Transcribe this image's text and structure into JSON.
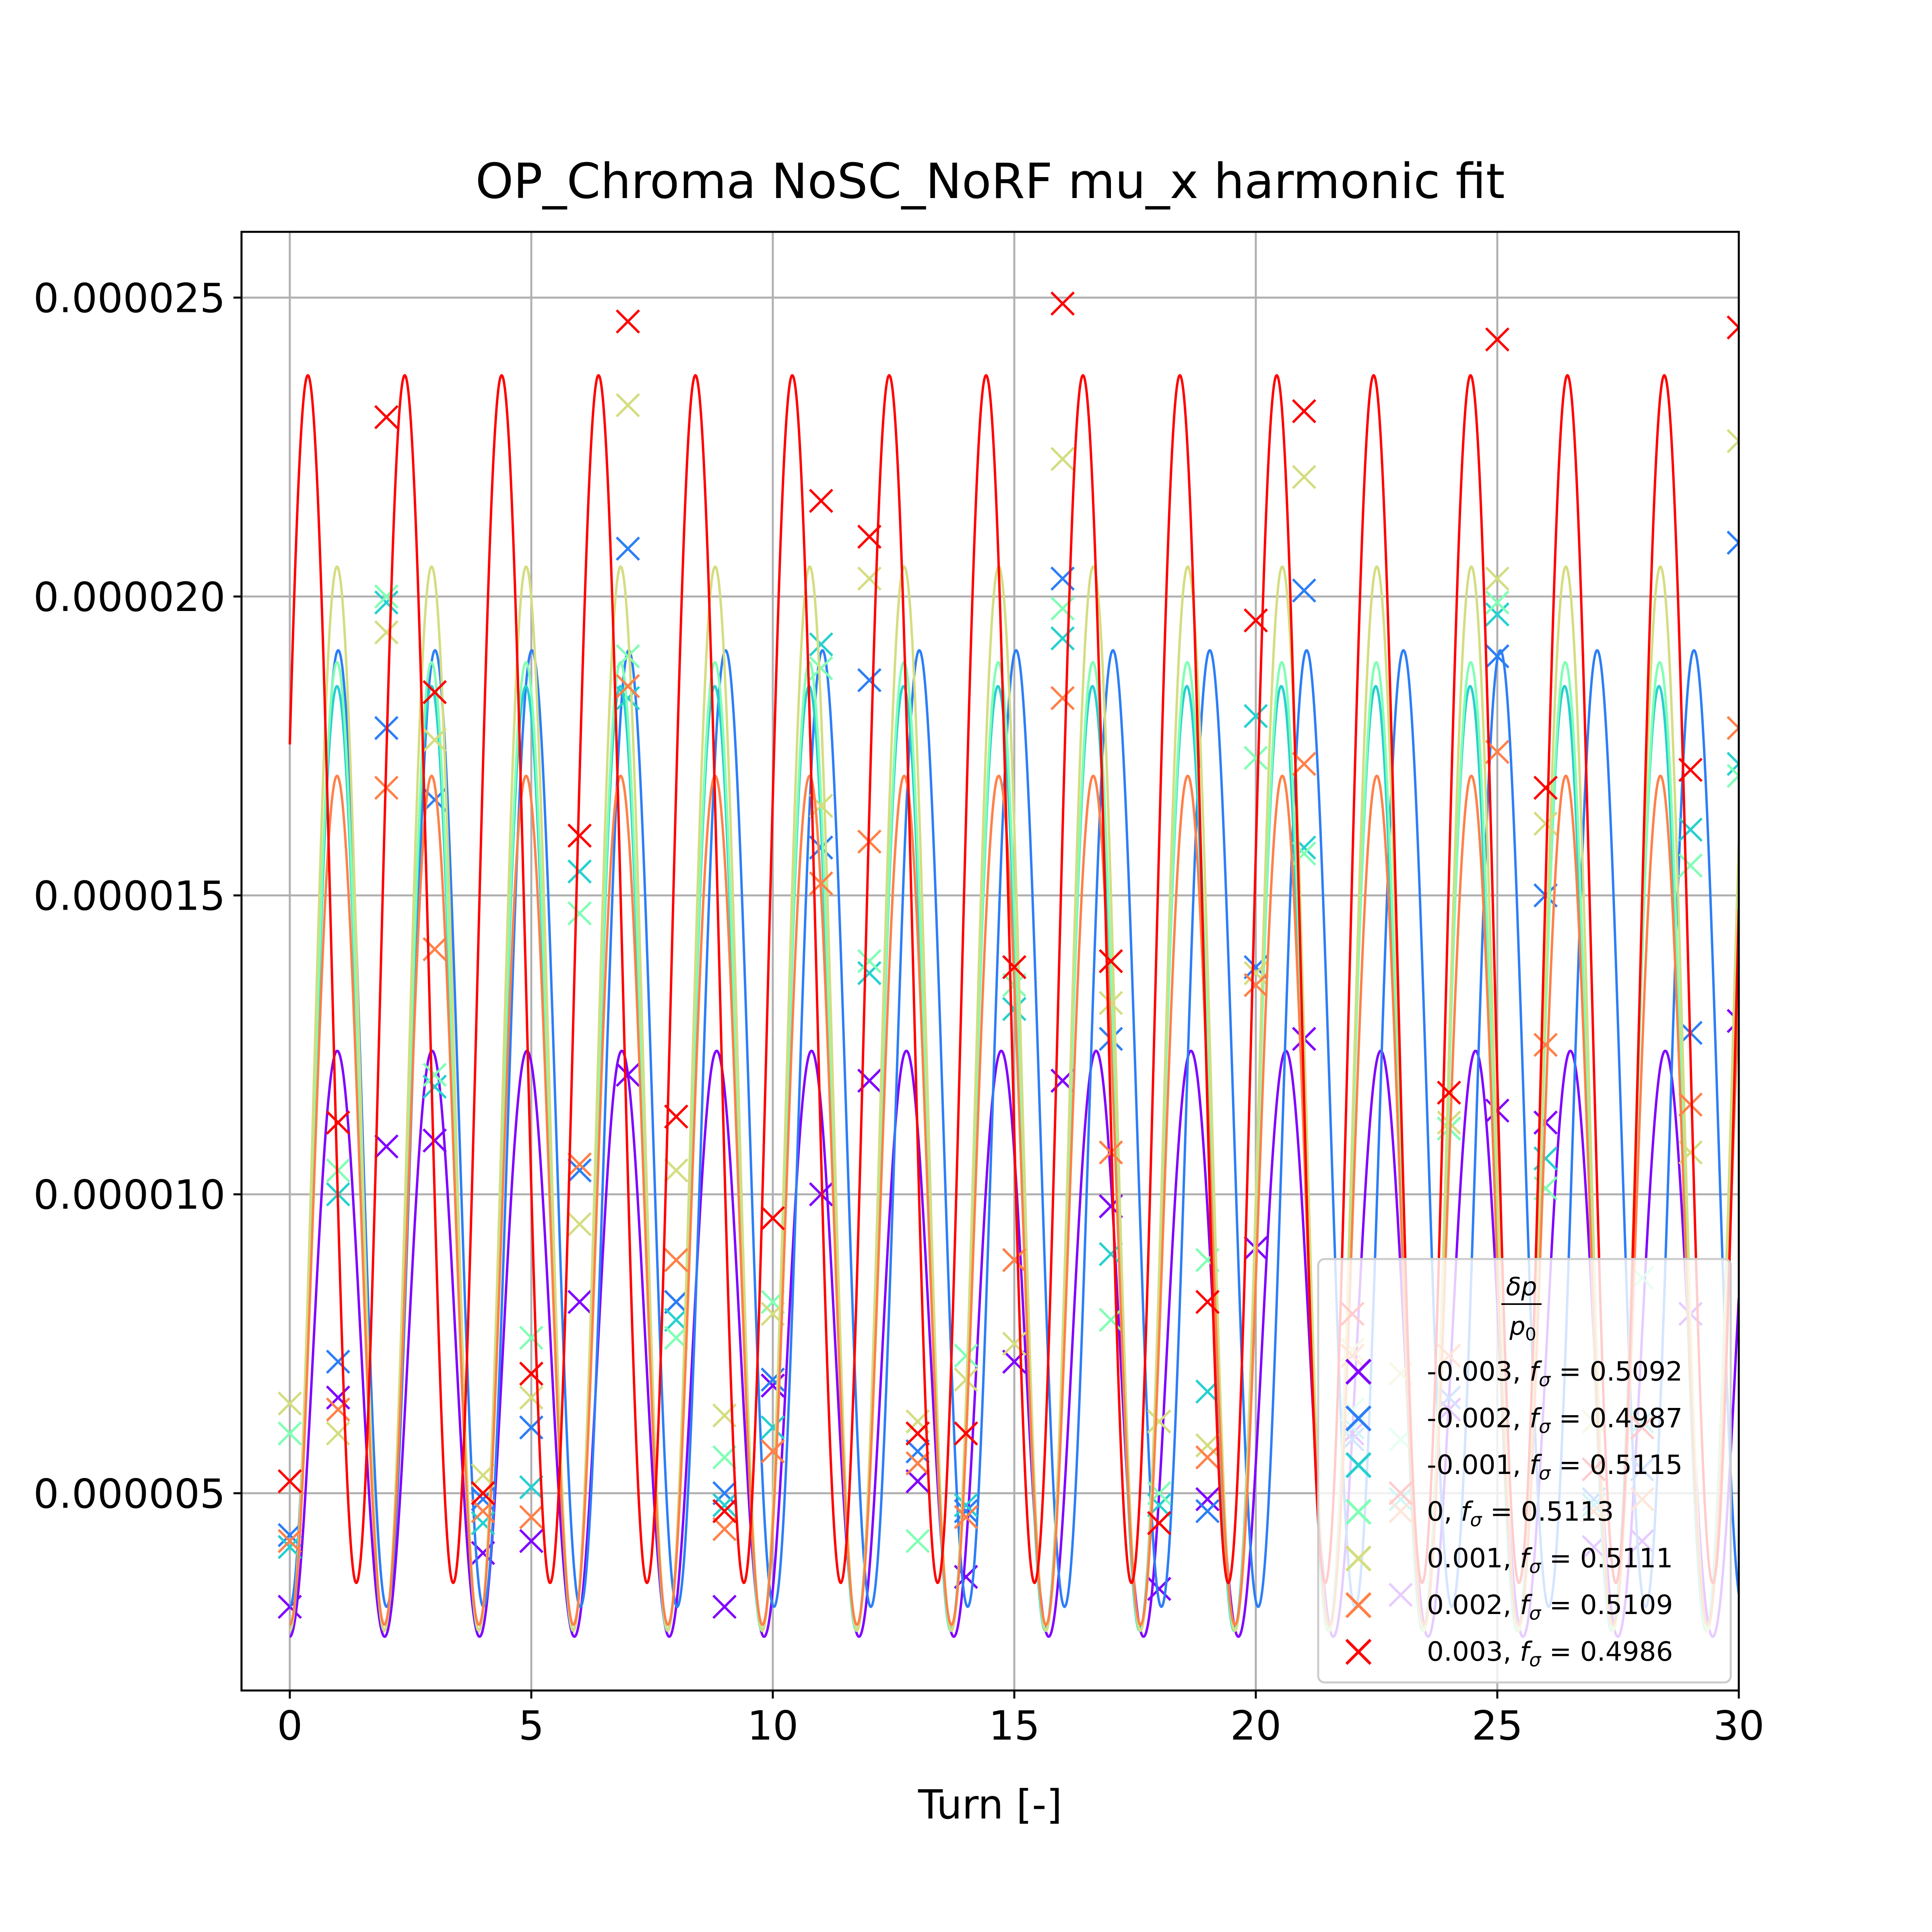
{
  "chart_data": {
    "type": "line",
    "title": "OP_Chroma NoSC_NoRF mu_x harmonic fit",
    "xlabel": "Turn [-]",
    "ylabel": "",
    "xlim": [
      -1,
      30
    ],
    "ylim": [
      1.7e-06,
      2.61e-05
    ],
    "xticks": [
      0,
      5,
      10,
      15,
      20,
      25,
      30
    ],
    "xtick_labels": [
      "0",
      "5",
      "10",
      "15",
      "20",
      "25",
      "30"
    ],
    "yticks": [
      5e-06,
      1e-05,
      1.5e-05,
      2e-05,
      2.5e-05
    ],
    "ytick_labels": [
      "0.000005",
      "0.000010",
      "0.000015",
      "0.000020",
      "0.000025"
    ],
    "grid": true,
    "legend": {
      "placement": "lower right",
      "title_numerator": "δp",
      "title_denominator": "p",
      "title_denominator_subscript": "0"
    },
    "series": [
      {
        "name": "-0.003",
        "f_sigma": "0.5092",
        "color": "#8000ff",
        "fit": {
          "offset": 7.5e-06,
          "amplitude": 4.9e-06,
          "period": 1.964,
          "phase": 0.0
        },
        "markers": {
          "x": [
            0,
            1,
            2,
            3,
            4,
            5,
            6,
            7,
            8,
            9,
            10,
            11,
            12,
            13,
            14,
            15,
            16,
            17,
            18,
            19,
            20,
            21,
            22,
            23,
            24,
            25,
            26,
            27,
            28,
            29,
            30
          ],
          "y": [
            3.1e-06,
            6.6e-06,
            1.08e-05,
            1.09e-05,
            4e-06,
            4.2e-06,
            8.2e-06,
            1.2e-05,
            8.2e-06,
            3.1e-06,
            6.8e-06,
            1e-05,
            1.19e-05,
            5.2e-06,
            3.6e-06,
            7.2e-06,
            1.19e-05,
            9.8e-06,
            3.4e-06,
            4.9e-06,
            9.1e-06,
            1.26e-05,
            6e-06,
            3.3e-06,
            6.4e-06,
            1.14e-05,
            1.12e-05,
            4.1e-06,
            4.2e-06,
            8e-06,
            1.29e-05
          ]
        }
      },
      {
        "name": "-0.002",
        "f_sigma": "0.4987",
        "color": "#2c7ef7",
        "fit": {
          "offset": 1.11e-05,
          "amplitude": 8e-06,
          "period": 2.005,
          "phase": 0.0
        },
        "markers": {
          "x": [
            0,
            1,
            2,
            3,
            4,
            5,
            6,
            7,
            8,
            9,
            10,
            11,
            12,
            13,
            14,
            15,
            16,
            17,
            18,
            19,
            20,
            21,
            22,
            23,
            24,
            25,
            26,
            27,
            28,
            29,
            30
          ],
          "y": [
            4.3e-06,
            7.2e-06,
            1.78e-05,
            1.66e-05,
            4.9e-06,
            6.1e-06,
            1.04e-05,
            2.08e-05,
            8.2e-06,
            5e-06,
            6.9e-06,
            1.58e-05,
            1.86e-05,
            5.7e-06,
            4.7e-06,
            8.9e-06,
            2.03e-05,
            1.26e-05,
            4.5e-06,
            4.7e-06,
            1.38e-05,
            2.01e-05,
            5.9e-06,
            4.9e-06,
            6.6e-06,
            1.9e-05,
            1.5e-05,
            4.9e-06,
            5.4e-06,
            1.27e-05,
            2.09e-05
          ]
        }
      },
      {
        "name": "-0.001",
        "f_sigma": "0.5115",
        "color": "#26d0d0",
        "fit": {
          "offset": 1.06e-05,
          "amplitude": 7.9e-06,
          "period": 1.955,
          "phase": 0.0
        },
        "markers": {
          "x": [
            0,
            1,
            2,
            3,
            4,
            5,
            6,
            7,
            8,
            9,
            10,
            11,
            12,
            13,
            14,
            15,
            16,
            17,
            18,
            19,
            20,
            21,
            22,
            23,
            24,
            25,
            26,
            27,
            28,
            29,
            30
          ],
          "y": [
            4.1e-06,
            1e-05,
            1.99e-05,
            1.18e-05,
            4.5e-06,
            5.1e-06,
            1.54e-05,
            1.83e-05,
            7.9e-06,
            4.8e-06,
            6.1e-06,
            1.92e-05,
            1.37e-05,
            5.5e-06,
            4.8e-06,
            1.31e-05,
            1.93e-05,
            9e-06,
            4.8e-06,
            6.7e-06,
            1.8e-05,
            1.58e-05,
            6.1e-06,
            4.9e-06,
            1.11e-05,
            1.97e-05,
            1.06e-05,
            4.8e-06,
            6.2e-06,
            1.61e-05,
            1.72e-05
          ]
        }
      },
      {
        "name": "0",
        "f_sigma": "0.5113",
        "color": "#80ffb4",
        "fit": {
          "offset": 1.08e-05,
          "amplitude": 8.1e-06,
          "period": 1.956,
          "phase": 0.0
        },
        "markers": {
          "x": [
            0,
            1,
            2,
            3,
            4,
            5,
            6,
            7,
            8,
            9,
            10,
            11,
            12,
            13,
            14,
            15,
            16,
            17,
            18,
            19,
            20,
            21,
            22,
            23,
            24,
            25,
            26,
            27,
            28,
            29,
            30
          ],
          "y": [
            6e-06,
            1.04e-05,
            2e-05,
            1.2e-05,
            4.7e-06,
            7.6e-06,
            1.47e-05,
            1.9e-05,
            7.6e-06,
            5.6e-06,
            8.2e-06,
            1.88e-05,
            1.39e-05,
            4.2e-06,
            7.3e-06,
            1.35e-05,
            1.98e-05,
            7.9e-06,
            5e-06,
            8.9e-06,
            1.73e-05,
            1.57e-05,
            6.4e-06,
            5.9e-06,
            1.11e-05,
            1.99e-05,
            1.01e-05,
            4.7e-06,
            8.6e-06,
            1.55e-05,
            1.7e-05
          ]
        }
      },
      {
        "name": "0.001",
        "f_sigma": "0.5111",
        "color": "#d4dd80",
        "fit": {
          "offset": 1.16e-05,
          "amplitude": 8.9e-06,
          "period": 1.957,
          "phase": 0.0
        },
        "markers": {
          "x": [
            0,
            1,
            2,
            3,
            4,
            5,
            6,
            7,
            8,
            9,
            10,
            11,
            12,
            13,
            14,
            15,
            16,
            17,
            18,
            19,
            20,
            21,
            22,
            23,
            24,
            25,
            26,
            27,
            28,
            29,
            30
          ],
          "y": [
            6.5e-06,
            6e-06,
            1.94e-05,
            1.76e-05,
            5.3e-06,
            6.6e-06,
            9.5e-06,
            2.32e-05,
            1.04e-05,
            6.3e-06,
            8e-06,
            1.65e-05,
            2.03e-05,
            6.2e-06,
            6.9e-06,
            7.5e-06,
            2.23e-05,
            1.32e-05,
            6.2e-06,
            5.8e-06,
            1.37e-05,
            2.2e-05,
            7.4e-06,
            7e-06,
            1.12e-05,
            2.03e-05,
            1.62e-05,
            6.2e-06,
            6.1e-06,
            1.07e-05,
            2.26e-05
          ]
        }
      },
      {
        "name": "0.002",
        "f_sigma": "0.5109",
        "color": "#ff8048",
        "fit": {
          "offset": 9.9e-06,
          "amplitude": 7.1e-06,
          "period": 1.957,
          "phase": 0.0
        },
        "markers": {
          "x": [
            0,
            1,
            2,
            3,
            4,
            5,
            6,
            7,
            8,
            9,
            10,
            11,
            12,
            13,
            14,
            15,
            16,
            17,
            18,
            19,
            20,
            21,
            22,
            23,
            24,
            25,
            26,
            27,
            28,
            29,
            30
          ],
          "y": [
            4.2e-06,
            6.4e-06,
            1.68e-05,
            1.41e-05,
            4.7e-06,
            4.6e-06,
            1.05e-05,
            1.85e-05,
            8.9e-06,
            4.4e-06,
            5.7e-06,
            1.52e-05,
            1.59e-05,
            5.5e-06,
            4.6e-06,
            8.9e-06,
            1.83e-05,
            1.07e-05,
            4.5e-06,
            5.6e-06,
            1.35e-05,
            1.72e-05,
            7.3e-06,
            4.7e-06,
            7.3e-06,
            1.74e-05,
            1.25e-05,
            4.7e-06,
            4.9e-06,
            1.15e-05,
            1.78e-05
          ]
        }
      },
      {
        "name": "0.003",
        "f_sigma": "0.4986",
        "color": "#ff0000",
        "fit": {
          "offset": 1.36e-05,
          "amplitude": 1.01e-05,
          "period": 2.006,
          "phase": 1.97
        },
        "markers": {
          "x": [
            0,
            1,
            2,
            3,
            4,
            5,
            6,
            7,
            8,
            9,
            10,
            11,
            12,
            13,
            14,
            15,
            16,
            17,
            18,
            19,
            20,
            21,
            22,
            23,
            24,
            25,
            26,
            27,
            28,
            29,
            30
          ],
          "y": [
            5.2e-06,
            1.12e-05,
            2.3e-05,
            1.84e-05,
            5e-06,
            7e-06,
            1.6e-05,
            2.46e-05,
            1.13e-05,
            4.7e-06,
            9.6e-06,
            2.16e-05,
            2.1e-05,
            6e-06,
            6e-06,
            1.38e-05,
            2.49e-05,
            1.39e-05,
            4.5e-06,
            8.2e-06,
            1.96e-05,
            2.31e-05,
            8e-06,
            5e-06,
            1.17e-05,
            2.43e-05,
            1.68e-05,
            5.4e-06,
            6.1e-06,
            1.71e-05,
            2.45e-05
          ]
        }
      }
    ]
  }
}
